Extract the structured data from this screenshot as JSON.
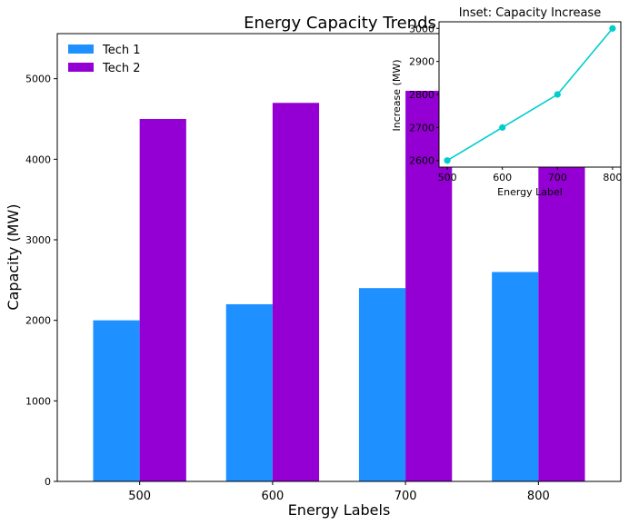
{
  "chart_data": [
    {
      "type": "bar",
      "title": "Energy Capacity Trends",
      "xlabel": "Energy Labels",
      "ylabel": "Capacity (MW)",
      "categories": [
        "500",
        "600",
        "700",
        "800"
      ],
      "series": [
        {
          "name": "Tech 1",
          "values": [
            2000,
            2200,
            2400,
            2600
          ],
          "color": "#1e90ff"
        },
        {
          "name": "Tech 2",
          "values": [
            4500,
            4700,
            4850,
            5000
          ],
          "color": "#9400d3"
        }
      ],
      "ylim": [
        0,
        5560
      ],
      "yticks": [
        0,
        1000,
        2000,
        3000,
        4000,
        5000
      ],
      "legend_position": "top-left",
      "grid": false
    },
    {
      "type": "line",
      "title": "Inset: Capacity Increase",
      "xlabel": "Energy Label",
      "ylabel": "Increase (MW)",
      "x": [
        500,
        600,
        700,
        800
      ],
      "y": [
        2600,
        2700,
        2800,
        3000
      ],
      "xlim": [
        485,
        815
      ],
      "ylim": [
        2580,
        3020
      ],
      "xticks": [
        500,
        600,
        700,
        800
      ],
      "yticks": [
        2600,
        2700,
        2800,
        2900,
        3000
      ],
      "color": "#00cdcd",
      "marker": "circle",
      "grid": false
    }
  ]
}
